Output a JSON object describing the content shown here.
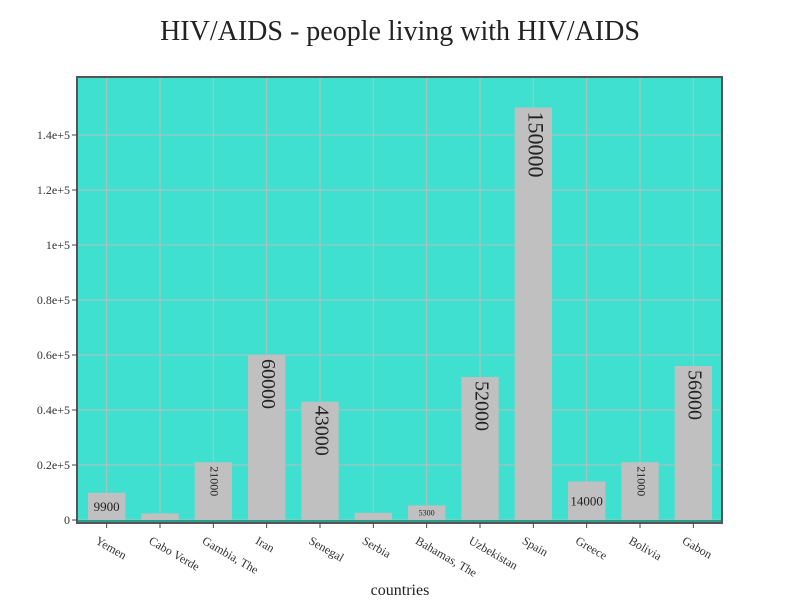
{
  "chart_data": {
    "type": "bar",
    "title": "HIV/AIDS - people living with HIV/AIDS",
    "xlabel": "countries",
    "ylabel": "",
    "categories": [
      "Yemen",
      "Cabo Verde",
      "Gambia, The",
      "Iran",
      "Senegal",
      "Serbia",
      "Bahamas, The",
      "Uzbekistan",
      "Spain",
      "Greece",
      "Bolivia",
      "Gabon"
    ],
    "values": [
      9900,
      2400,
      21000,
      60000,
      43000,
      2600,
      5300,
      52000,
      150000,
      14000,
      21000,
      56000
    ],
    "data_labels": [
      "9900",
      "",
      "21000",
      "60000",
      "43000",
      "",
      "5300",
      "52000",
      "150000",
      "14000",
      "21000",
      "56000"
    ],
    "ylim": [
      0,
      152000
    ],
    "yticks": [
      0,
      20000,
      40000,
      60000,
      80000,
      100000,
      120000,
      140000
    ],
    "ytick_labels": [
      "0",
      "0.2e+5",
      "0.4e+5",
      "0.6e+5",
      "0.8e+5",
      "1e+5",
      "1.2e+5",
      "1.4e+5"
    ],
    "grid": true,
    "colors": {
      "plot_background": "#40E0D0",
      "bar": "#C0C0C0",
      "grid": "#BDBDBD",
      "frame": "#555555"
    }
  }
}
